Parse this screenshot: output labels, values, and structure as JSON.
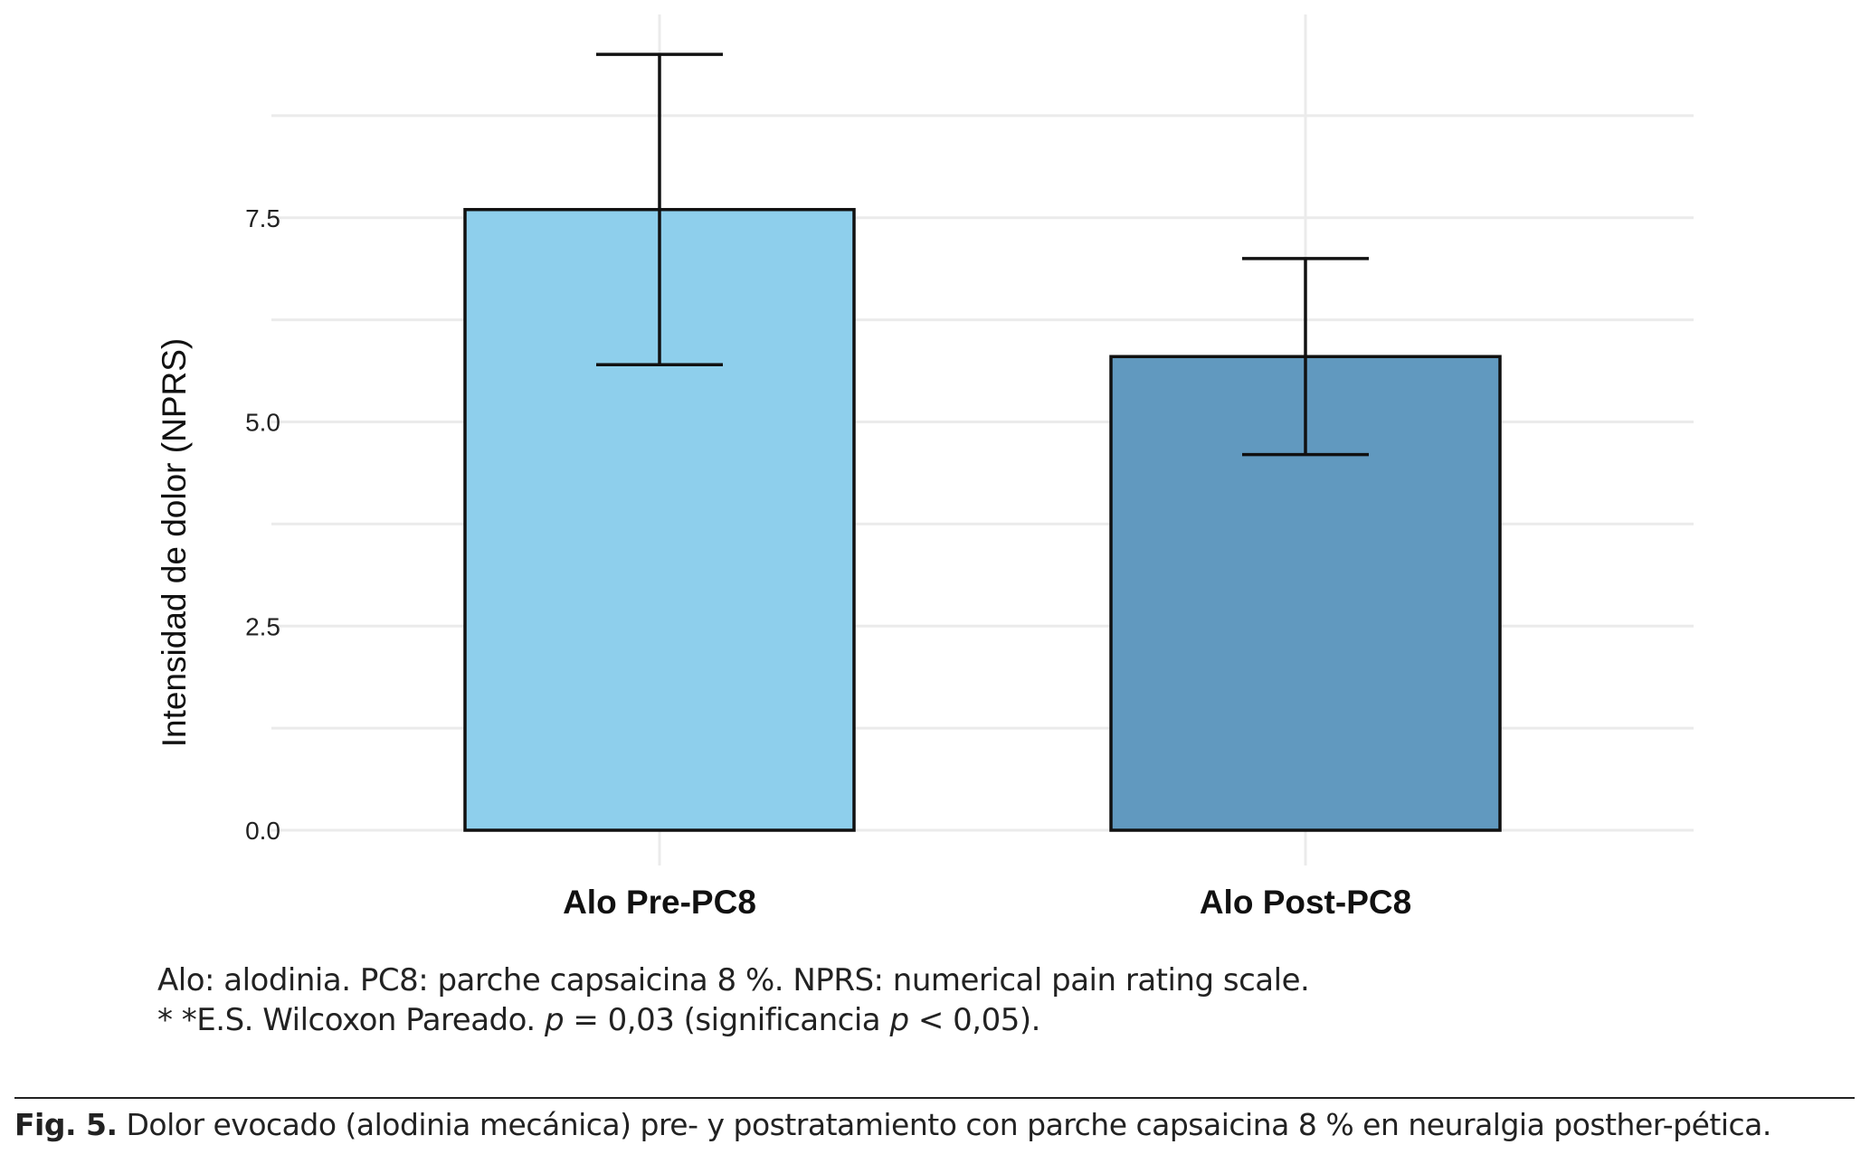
{
  "chart_data": {
    "type": "bar",
    "categories": [
      "Alo Pre-PC8",
      "Alo Post-PC8"
    ],
    "values": [
      7.6,
      5.8
    ],
    "error_bars": [
      {
        "lower": 5.7,
        "upper": 9.5
      },
      {
        "lower": 4.6,
        "upper": 7.0
      }
    ],
    "bar_colors": [
      "#8ecfec",
      "#6199bf"
    ],
    "xlabel": "",
    "ylabel": "Intensidad de dolor (NPRS)",
    "ylim": [
      0,
      10
    ],
    "yticks": [
      0.0,
      2.5,
      5.0,
      7.5
    ],
    "ytick_labels": [
      "0.0",
      "2.5",
      "5.0",
      "7.5"
    ],
    "grid": true,
    "legend": "none"
  },
  "notes": {
    "line1": "Alo: alodinia. PC8: parche capsaicina 8 %. NPRS: numerical pain rating scale.",
    "line2_prefix": "* *E.S. Wilcoxon Pareado. ",
    "line2_p1": "p",
    "line2_mid": " = 0,03 (significancia ",
    "line2_p2": "p",
    "line2_suffix": " < 0,05)."
  },
  "caption": {
    "label": "Fig. 5.",
    "text": " Dolor evocado (alodinia mecánica)  pre- y postratamiento con parche capsaicina 8 % en neuralgia posther-pética."
  }
}
